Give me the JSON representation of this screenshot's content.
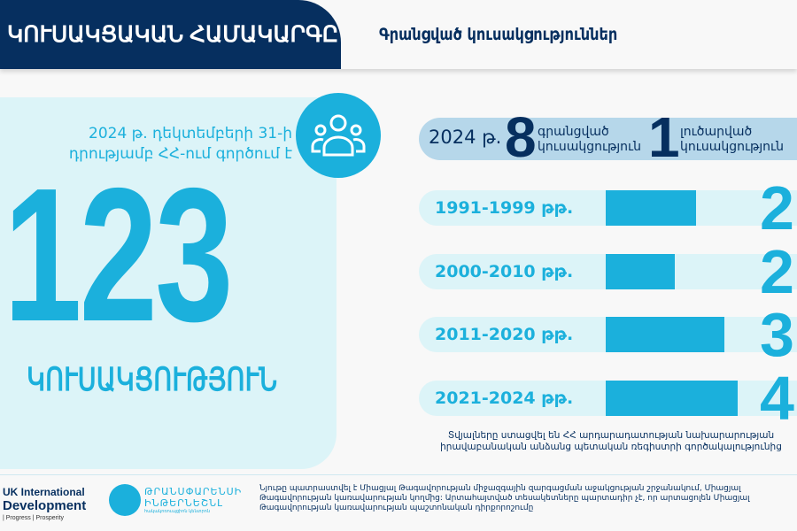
{
  "header": {
    "title": "ԿՈՒՍԱԿՑԱԿԱՆ ՀԱՄԱԿԱՐԳԸ",
    "subtitle": "Գրանցված կուսակցություններ"
  },
  "left_panel": {
    "caption_line1": "2024 թ. դեկտեմբերի 31-ի",
    "caption_line2": "դրությամբ ՀՀ-ում գործում է",
    "total": "123",
    "total_label": "ԿՈՒՍԱԿՑՈՒԹՅՈՒՆ",
    "icon": "people-group-icon"
  },
  "summary": {
    "year": "2024 թ.",
    "registered_count": "8",
    "registered_label_1": "գրանցված",
    "registered_label_2": "կուսակցություն",
    "dissolved_count": "1",
    "dissolved_label_1": "լուծարված",
    "dissolved_label_2": "կուսակցություն"
  },
  "periods": [
    {
      "label": "1991-1999 թթ.",
      "visible_value": "2",
      "bar_fill_percent": 47
    },
    {
      "label": "2000-2010 թթ.",
      "visible_value": "2",
      "bar_fill_percent": 36
    },
    {
      "label": "2011-2020 թթ.",
      "visible_value": "3",
      "bar_fill_percent": 62
    },
    {
      "label": "2021-2024 թթ.",
      "visible_value": "4",
      "bar_fill_percent": 69
    }
  ],
  "source": {
    "line1": "Տվյալները ստացվել են ՀՀ արդարադատության նախարարության իրավաբանական",
    "line2": "անձանց պետական ռեգիստրի գործակալությունից"
  },
  "footer": {
    "uk_line1": "UK International",
    "uk_line2": "Development",
    "uk_line3": "|  Progress   |   Prosperity",
    "ti_line1": "ԹՐԱՆՍՓԱՐԵՆՍԻ",
    "ti_line2": "ԻՆԹԵՐՆԵՇՆԼ",
    "ti_line3": "հակակոռուպցիոն կենտրոն",
    "disclaimer_line1": "Նյութը պատրաստվել է Միացյալ Թագավորության միջազգային զարգացման աջակցության շրջանակում, Միացյալ Թագավորության կառավարության",
    "disclaimer_line2": "կողմից:  Արտահայտված տեսակետները պարտադիր չէ, որ արտացոլեն Միացյալ Թագավորության կառավարության պաշտոնական դիրքորոշումը"
  },
  "colors": {
    "navy": "#062f5f",
    "cyan": "#1bb0dc",
    "light": "#dcf4f8",
    "summary_bg": "#b6d7ea"
  }
}
